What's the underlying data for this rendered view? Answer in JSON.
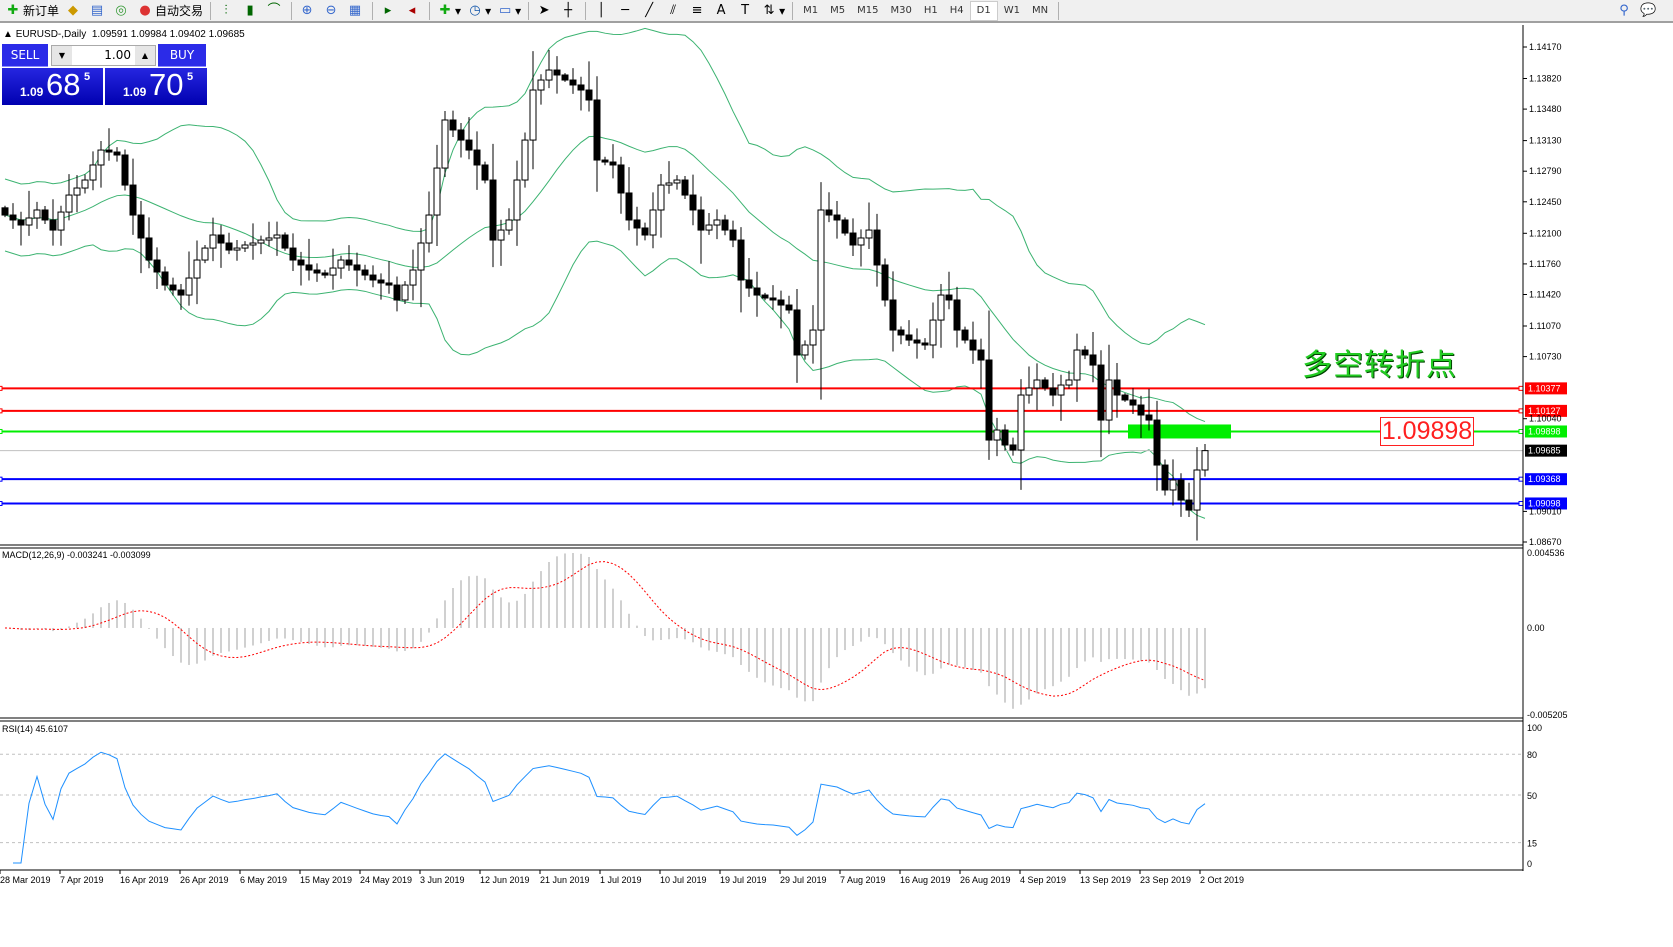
{
  "toolbar": {
    "new_order": "新订单",
    "auto_trading": "自动交易",
    "icons": [
      "new-order-icon",
      "market-watch-icon",
      "data-window-icon",
      "signals-icon",
      "auto-trading-icon",
      "bar-chart-icon",
      "candlestick-icon",
      "line-chart-icon",
      "zoom-in-icon",
      "zoom-out-icon",
      "tile-windows-icon",
      "auto-scroll-icon",
      "chart-shift-icon",
      "indicators-icon",
      "periods-icon",
      "templates-icon",
      "cursor-icon",
      "crosshair-icon",
      "vertical-line-icon",
      "horizontal-line-icon",
      "trendline-icon",
      "equidistant-channel-icon",
      "fibonacci-icon",
      "text-icon",
      "text-label-icon",
      "arrows-icon",
      "search-icon",
      "chat-icon"
    ],
    "timeframes": [
      "M1",
      "M5",
      "M15",
      "M30",
      "H1",
      "H4",
      "D1",
      "W1",
      "MN"
    ],
    "active_timeframe": "D1"
  },
  "header": {
    "symbol": "EURUSD-,Daily",
    "ohlc": "1.09591 1.09984 1.09402 1.09685"
  },
  "trade_panel": {
    "sell_label": "SELL",
    "buy_label": "BUY",
    "lot": "1.00",
    "sell_price": {
      "prefix": "1.09",
      "big": "68",
      "sup": "5"
    },
    "buy_price": {
      "prefix": "1.09",
      "big": "70",
      "sup": "5"
    }
  },
  "annotations": {
    "text": "多空转折点",
    "price_box": "1.09898"
  },
  "colors": {
    "bollinger": "#3cb371",
    "bull": "#ffffff",
    "bear": "#000000",
    "macd_hist": "#c0c0c0",
    "macd_signal": "#ff0000",
    "rsi": "#1e90ff",
    "accent_blue": "#0000e0"
  },
  "chart_data": [
    {
      "type": "candlestick",
      "title": "EURUSD-,Daily",
      "indicator": "Bollinger Bands",
      "price_ticks": [
        "1.14170",
        "1.13820",
        "1.13480",
        "1.13130",
        "1.12790",
        "1.12450",
        "1.12100",
        "1.11760",
        "1.11420",
        "1.11070",
        "1.10730",
        "1.10040",
        "1.09010",
        "1.08670"
      ],
      "ylim": [
        1.0867,
        1.1417
      ],
      "x_tick_labels": [
        "28 Mar 2019",
        "7 Apr 2019",
        "16 Apr 2019",
        "26 Apr 2019",
        "6 May 2019",
        "15 May 2019",
        "24 May 2019",
        "3 Jun 2019",
        "12 Jun 2019",
        "21 Jun 2019",
        "1 Jul 2019",
        "10 Jul 2019",
        "19 Jul 2019",
        "29 Jul 2019",
        "7 Aug 2019",
        "16 Aug 2019",
        "26 Aug 2019",
        "4 Sep 2019",
        "13 Sep 2019",
        "23 Sep 2019",
        "2 Oct 2019"
      ],
      "close": [
        1.12303,
        1.12248,
        1.12192,
        1.1227,
        1.12359,
        1.12248,
        1.12136,
        1.12336,
        1.12525,
        1.12603,
        1.12692,
        1.12859,
        1.13025,
        1.13003,
        1.1297,
        1.12636,
        1.12303,
        1.12048,
        1.11803,
        1.1167,
        1.11525,
        1.1147,
        1.11414,
        1.11603,
        1.11803,
        1.11936,
        1.12081,
        1.11992,
        1.11914,
        1.11936,
        1.1197,
        1.11992,
        1.12025,
        1.12048,
        1.12081,
        1.11936,
        1.11803,
        1.11748,
        1.11692,
        1.11659,
        1.11636,
        1.11714,
        1.11803,
        1.11748,
        1.11692,
        1.11636,
        1.11581,
        1.11548,
        1.11525,
        1.11359,
        1.11525,
        1.11692,
        1.11992,
        1.12303,
        1.12825,
        1.13359,
        1.13248,
        1.13136,
        1.13025,
        1.12859,
        1.12692,
        1.12025,
        1.12136,
        1.12248,
        1.12692,
        1.13136,
        1.13692,
        1.13803,
        1.13914,
        1.13859,
        1.13803,
        1.13748,
        1.13692,
        1.13581,
        1.12914,
        1.12892,
        1.12859,
        1.12548,
        1.12248,
        1.12159,
        1.12081,
        1.12359,
        1.12636,
        1.12659,
        1.12692,
        1.12525,
        1.12359,
        1.12136,
        1.12192,
        1.12248,
        1.12136,
        1.12025,
        1.11581,
        1.11492,
        1.11414,
        1.11381,
        1.11359,
        1.11303,
        1.11248,
        1.10748,
        1.10859,
        1.11025,
        1.12359,
        1.12303,
        1.12248,
        1.12103,
        1.1197,
        1.12048,
        1.12136,
        1.11748,
        1.11359,
        1.11025,
        1.1097,
        1.10914,
        1.10881,
        1.10859,
        1.11136,
        1.11414,
        1.11359,
        1.11025,
        1.10914,
        1.10803,
        1.10692,
        1.09803,
        1.09914,
        1.09748,
        1.09692,
        1.10303,
        1.10381,
        1.1047,
        1.10381,
        1.10303,
        1.10414,
        1.1047,
        1.10803,
        1.10748,
        1.10636,
        1.10025,
        1.1047,
        1.10303,
        1.10248,
        1.10192,
        1.10081,
        1.10025,
        1.09525,
        1.09248,
        1.09359,
        1.09136,
        1.09025,
        1.0947,
        1.09685
      ],
      "horizontal_levels": [
        {
          "price": "1.10377",
          "color": "#ff0000"
        },
        {
          "price": "1.10127",
          "color": "#ff0000"
        },
        {
          "price": "1.09898",
          "color": "#00ee00"
        },
        {
          "price": "1.09685",
          "color": "#c0c0c0"
        },
        {
          "price": "1.09368",
          "color": "#0000ff"
        },
        {
          "price": "1.09098",
          "color": "#0000ff"
        }
      ]
    },
    {
      "type": "bar",
      "title": "MACD(12,26,9) -0.003241 -0.003099",
      "y_ticks": [
        "0.004536",
        "0.00",
        "-0.005205"
      ],
      "ylim": [
        -0.005205,
        0.004536
      ]
    },
    {
      "type": "line",
      "title": "RSI(14) 45.6107",
      "y_ticks": [
        "100",
        "80",
        "50",
        "15",
        "0"
      ],
      "ylim": [
        0,
        100
      ]
    }
  ]
}
